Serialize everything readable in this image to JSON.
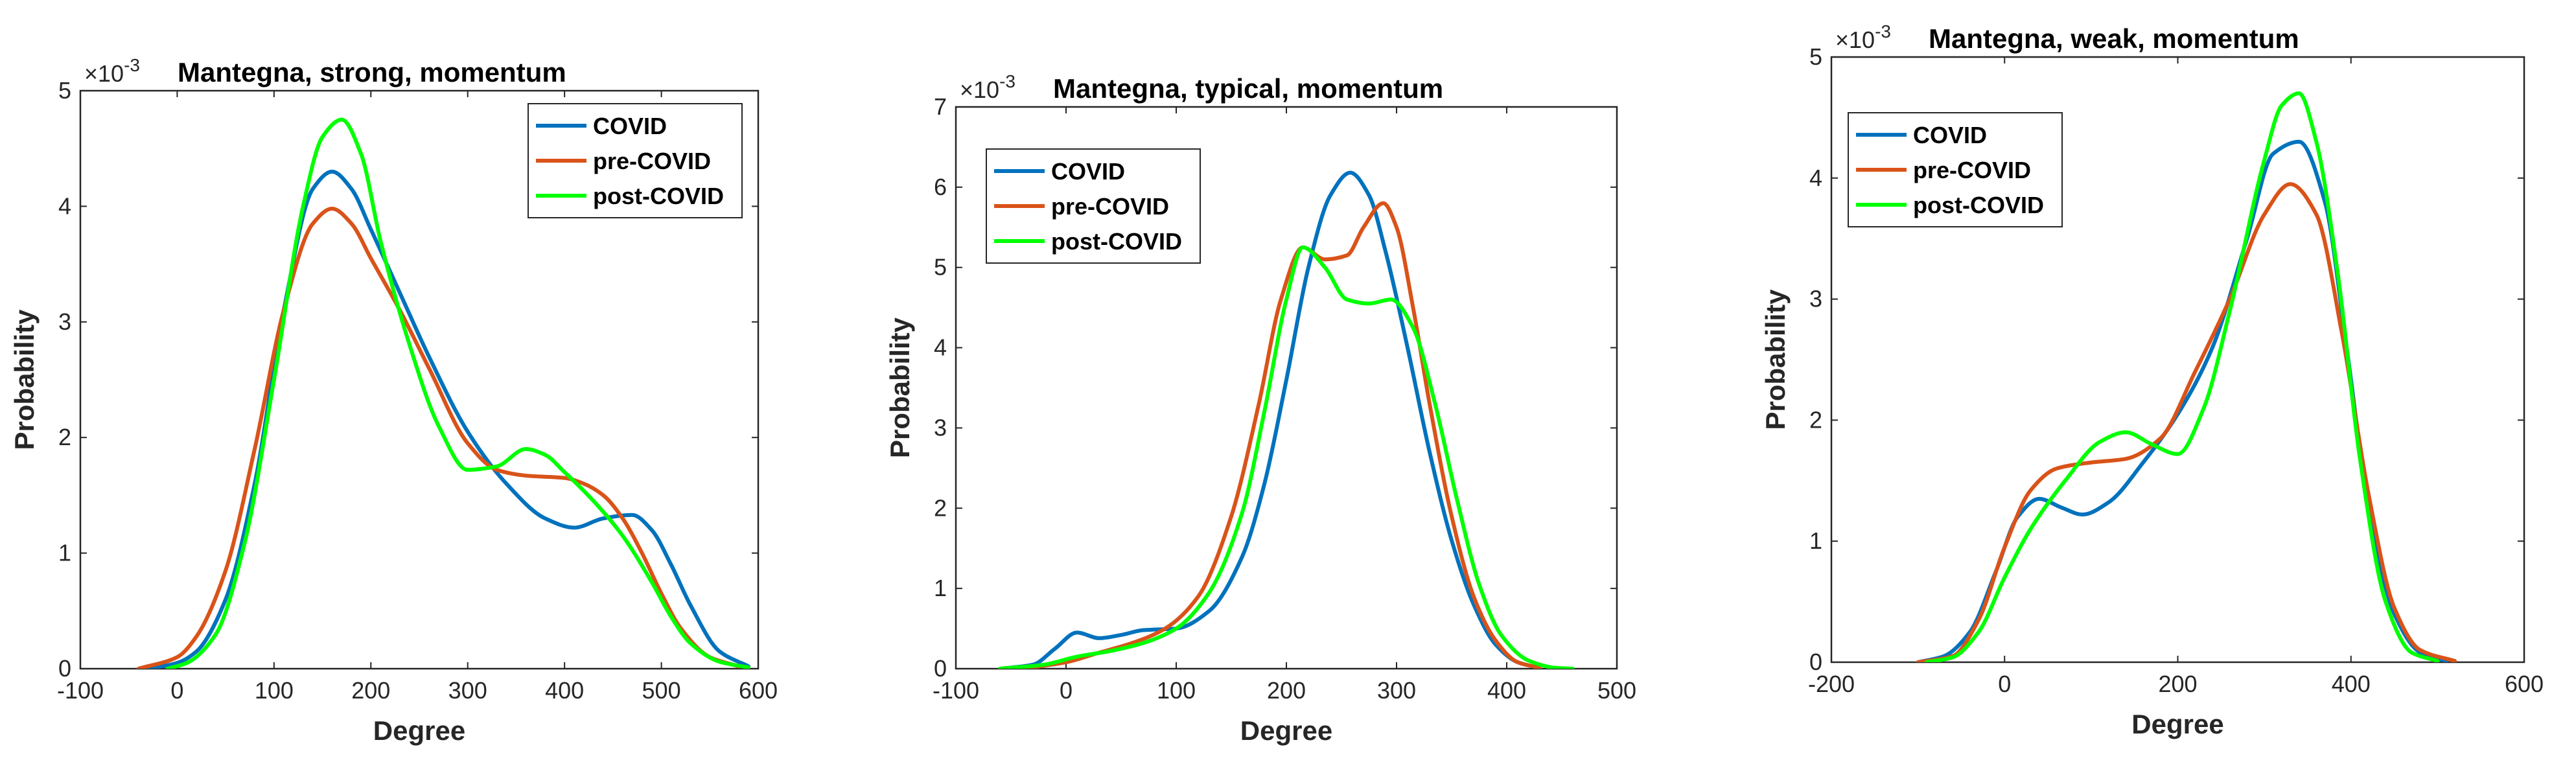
{
  "colors": {
    "covid": "#0072BD",
    "pre_covid": "#D95319",
    "post_covid": "#00FF00"
  },
  "chart_data": [
    {
      "type": "line",
      "title": "Mantegna, strong, momentum",
      "xlabel": "Degree",
      "ylabel": "Probability",
      "exponent_label": "×10",
      "exponent_power": "-3",
      "xlim": [
        -100,
        600
      ],
      "ylim": [
        0,
        5
      ],
      "xticks": [
        -100,
        0,
        100,
        200,
        300,
        400,
        500,
        600
      ],
      "yticks": [
        0,
        1,
        2,
        3,
        4,
        5
      ],
      "legend_position": "top-right",
      "series": [
        {
          "name": "COVID",
          "x": [
            -30,
            0,
            20,
            50,
            80,
            110,
            140,
            160,
            180,
            200,
            230,
            260,
            300,
            340,
            380,
            410,
            440,
            470,
            490,
            510,
            530,
            560,
            590
          ],
          "y": [
            0,
            0.05,
            0.15,
            0.6,
            1.6,
            3.1,
            4.15,
            4.3,
            4.15,
            3.8,
            3.25,
            2.7,
            2.05,
            1.6,
            1.3,
            1.22,
            1.3,
            1.33,
            1.2,
            0.9,
            0.55,
            0.15,
            0.02
          ]
        },
        {
          "name": "pre-COVID",
          "x": [
            -40,
            0,
            20,
            50,
            80,
            110,
            140,
            160,
            180,
            200,
            230,
            260,
            300,
            330,
            360,
            400,
            420,
            440,
            460,
            480,
            500,
            520,
            550,
            580
          ],
          "y": [
            0,
            0.1,
            0.28,
            0.85,
            1.9,
            3.1,
            3.85,
            3.98,
            3.85,
            3.55,
            3.1,
            2.6,
            1.95,
            1.72,
            1.67,
            1.65,
            1.6,
            1.5,
            1.3,
            1.0,
            0.65,
            0.35,
            0.1,
            0.02
          ]
        },
        {
          "name": "post-COVID",
          "x": [
            -10,
            10,
            40,
            70,
            100,
            130,
            150,
            170,
            190,
            210,
            240,
            270,
            300,
            330,
            360,
            380,
            400,
            430,
            460,
            490,
            510,
            530,
            560,
            590
          ],
          "y": [
            0,
            0.05,
            0.3,
            1.1,
            2.5,
            4.0,
            4.6,
            4.75,
            4.45,
            3.7,
            2.8,
            2.1,
            1.72,
            1.75,
            1.9,
            1.85,
            1.7,
            1.45,
            1.15,
            0.75,
            0.45,
            0.22,
            0.06,
            0.01
          ]
        }
      ]
    },
    {
      "type": "line",
      "title": "Mantegna, typical, momentum",
      "xlabel": "Degree",
      "ylabel": "Probability",
      "exponent_label": "×10",
      "exponent_power": "-3",
      "xlim": [
        -100,
        500
      ],
      "ylim": [
        0,
        7
      ],
      "xticks": [
        -100,
        0,
        100,
        200,
        300,
        400,
        500
      ],
      "yticks": [
        0,
        1,
        2,
        3,
        4,
        5,
        6,
        7
      ],
      "legend_position": "top-left",
      "series": [
        {
          "name": "COVID",
          "x": [
            -60,
            -30,
            -10,
            10,
            30,
            50,
            70,
            100,
            130,
            160,
            180,
            200,
            220,
            240,
            258,
            275,
            290,
            310,
            330,
            350,
            370,
            390,
            410,
            430
          ],
          "y": [
            0,
            0.05,
            0.25,
            0.45,
            0.38,
            0.42,
            0.48,
            0.5,
            0.72,
            1.4,
            2.3,
            3.6,
            5.0,
            5.9,
            6.18,
            5.9,
            5.2,
            4.0,
            2.7,
            1.6,
            0.8,
            0.3,
            0.08,
            0.01
          ]
        },
        {
          "name": "pre-COVID",
          "x": [
            -40,
            0,
            30,
            60,
            90,
            120,
            150,
            175,
            195,
            215,
            235,
            255,
            270,
            288,
            300,
            315,
            330,
            350,
            370,
            390,
            410,
            430
          ],
          "y": [
            0,
            0.08,
            0.2,
            0.32,
            0.5,
            0.9,
            1.9,
            3.3,
            4.6,
            5.25,
            5.1,
            5.15,
            5.5,
            5.8,
            5.5,
            4.5,
            3.3,
            1.9,
            0.9,
            0.35,
            0.08,
            0.01
          ]
        },
        {
          "name": "post-COVID",
          "x": [
            -60,
            -20,
            10,
            40,
            70,
            100,
            130,
            160,
            180,
            200,
            215,
            235,
            255,
            275,
            295,
            315,
            335,
            355,
            375,
            395,
            420,
            445,
            460
          ],
          "y": [
            0,
            0.05,
            0.15,
            0.22,
            0.32,
            0.5,
            0.95,
            1.95,
            3.2,
            4.6,
            5.25,
            5.0,
            4.6,
            4.55,
            4.6,
            4.25,
            3.3,
            2.1,
            1.05,
            0.42,
            0.1,
            0.01,
            0
          ]
        }
      ]
    },
    {
      "type": "line",
      "title": "Mantegna, weak, momentum",
      "xlabel": "Degree",
      "ylabel": "Probability",
      "exponent_label": "×10",
      "exponent_power": "-3",
      "xlim": [
        -200,
        600
      ],
      "ylim": [
        0,
        5
      ],
      "xticks": [
        -200,
        0,
        200,
        400,
        600
      ],
      "yticks": [
        0,
        1,
        2,
        3,
        4,
        5
      ],
      "legend_position": "top-left",
      "series": [
        {
          "name": "COVID",
          "x": [
            -100,
            -70,
            -40,
            -10,
            15,
            40,
            65,
            90,
            120,
            160,
            200,
            240,
            280,
            310,
            340,
            370,
            395,
            420,
            450,
            480,
            510
          ],
          "y": [
            0,
            0.05,
            0.25,
            0.75,
            1.2,
            1.35,
            1.28,
            1.22,
            1.32,
            1.65,
            2.05,
            2.6,
            3.5,
            4.2,
            4.3,
            3.8,
            2.6,
            1.3,
            0.4,
            0.08,
            0.01
          ]
        },
        {
          "name": "pre-COVID",
          "x": [
            -100,
            -60,
            -30,
            0,
            30,
            60,
            100,
            140,
            180,
            220,
            260,
            300,
            330,
            360,
            390,
            420,
            450,
            480,
            520
          ],
          "y": [
            0,
            0.05,
            0.35,
            0.95,
            1.42,
            1.6,
            1.65,
            1.68,
            1.85,
            2.4,
            3.0,
            3.7,
            3.95,
            3.7,
            2.7,
            1.4,
            0.45,
            0.1,
            0.01
          ]
        },
        {
          "name": "post-COVID",
          "x": [
            -90,
            -60,
            -30,
            0,
            30,
            70,
            110,
            140,
            170,
            200,
            230,
            260,
            300,
            320,
            340,
            360,
            385,
            410,
            440,
            470,
            500
          ],
          "y": [
            0,
            0.04,
            0.25,
            0.7,
            1.1,
            1.5,
            1.82,
            1.9,
            1.8,
            1.72,
            2.1,
            2.9,
            4.15,
            4.6,
            4.7,
            4.3,
            3.2,
            1.7,
            0.5,
            0.08,
            0.01
          ]
        }
      ]
    }
  ]
}
